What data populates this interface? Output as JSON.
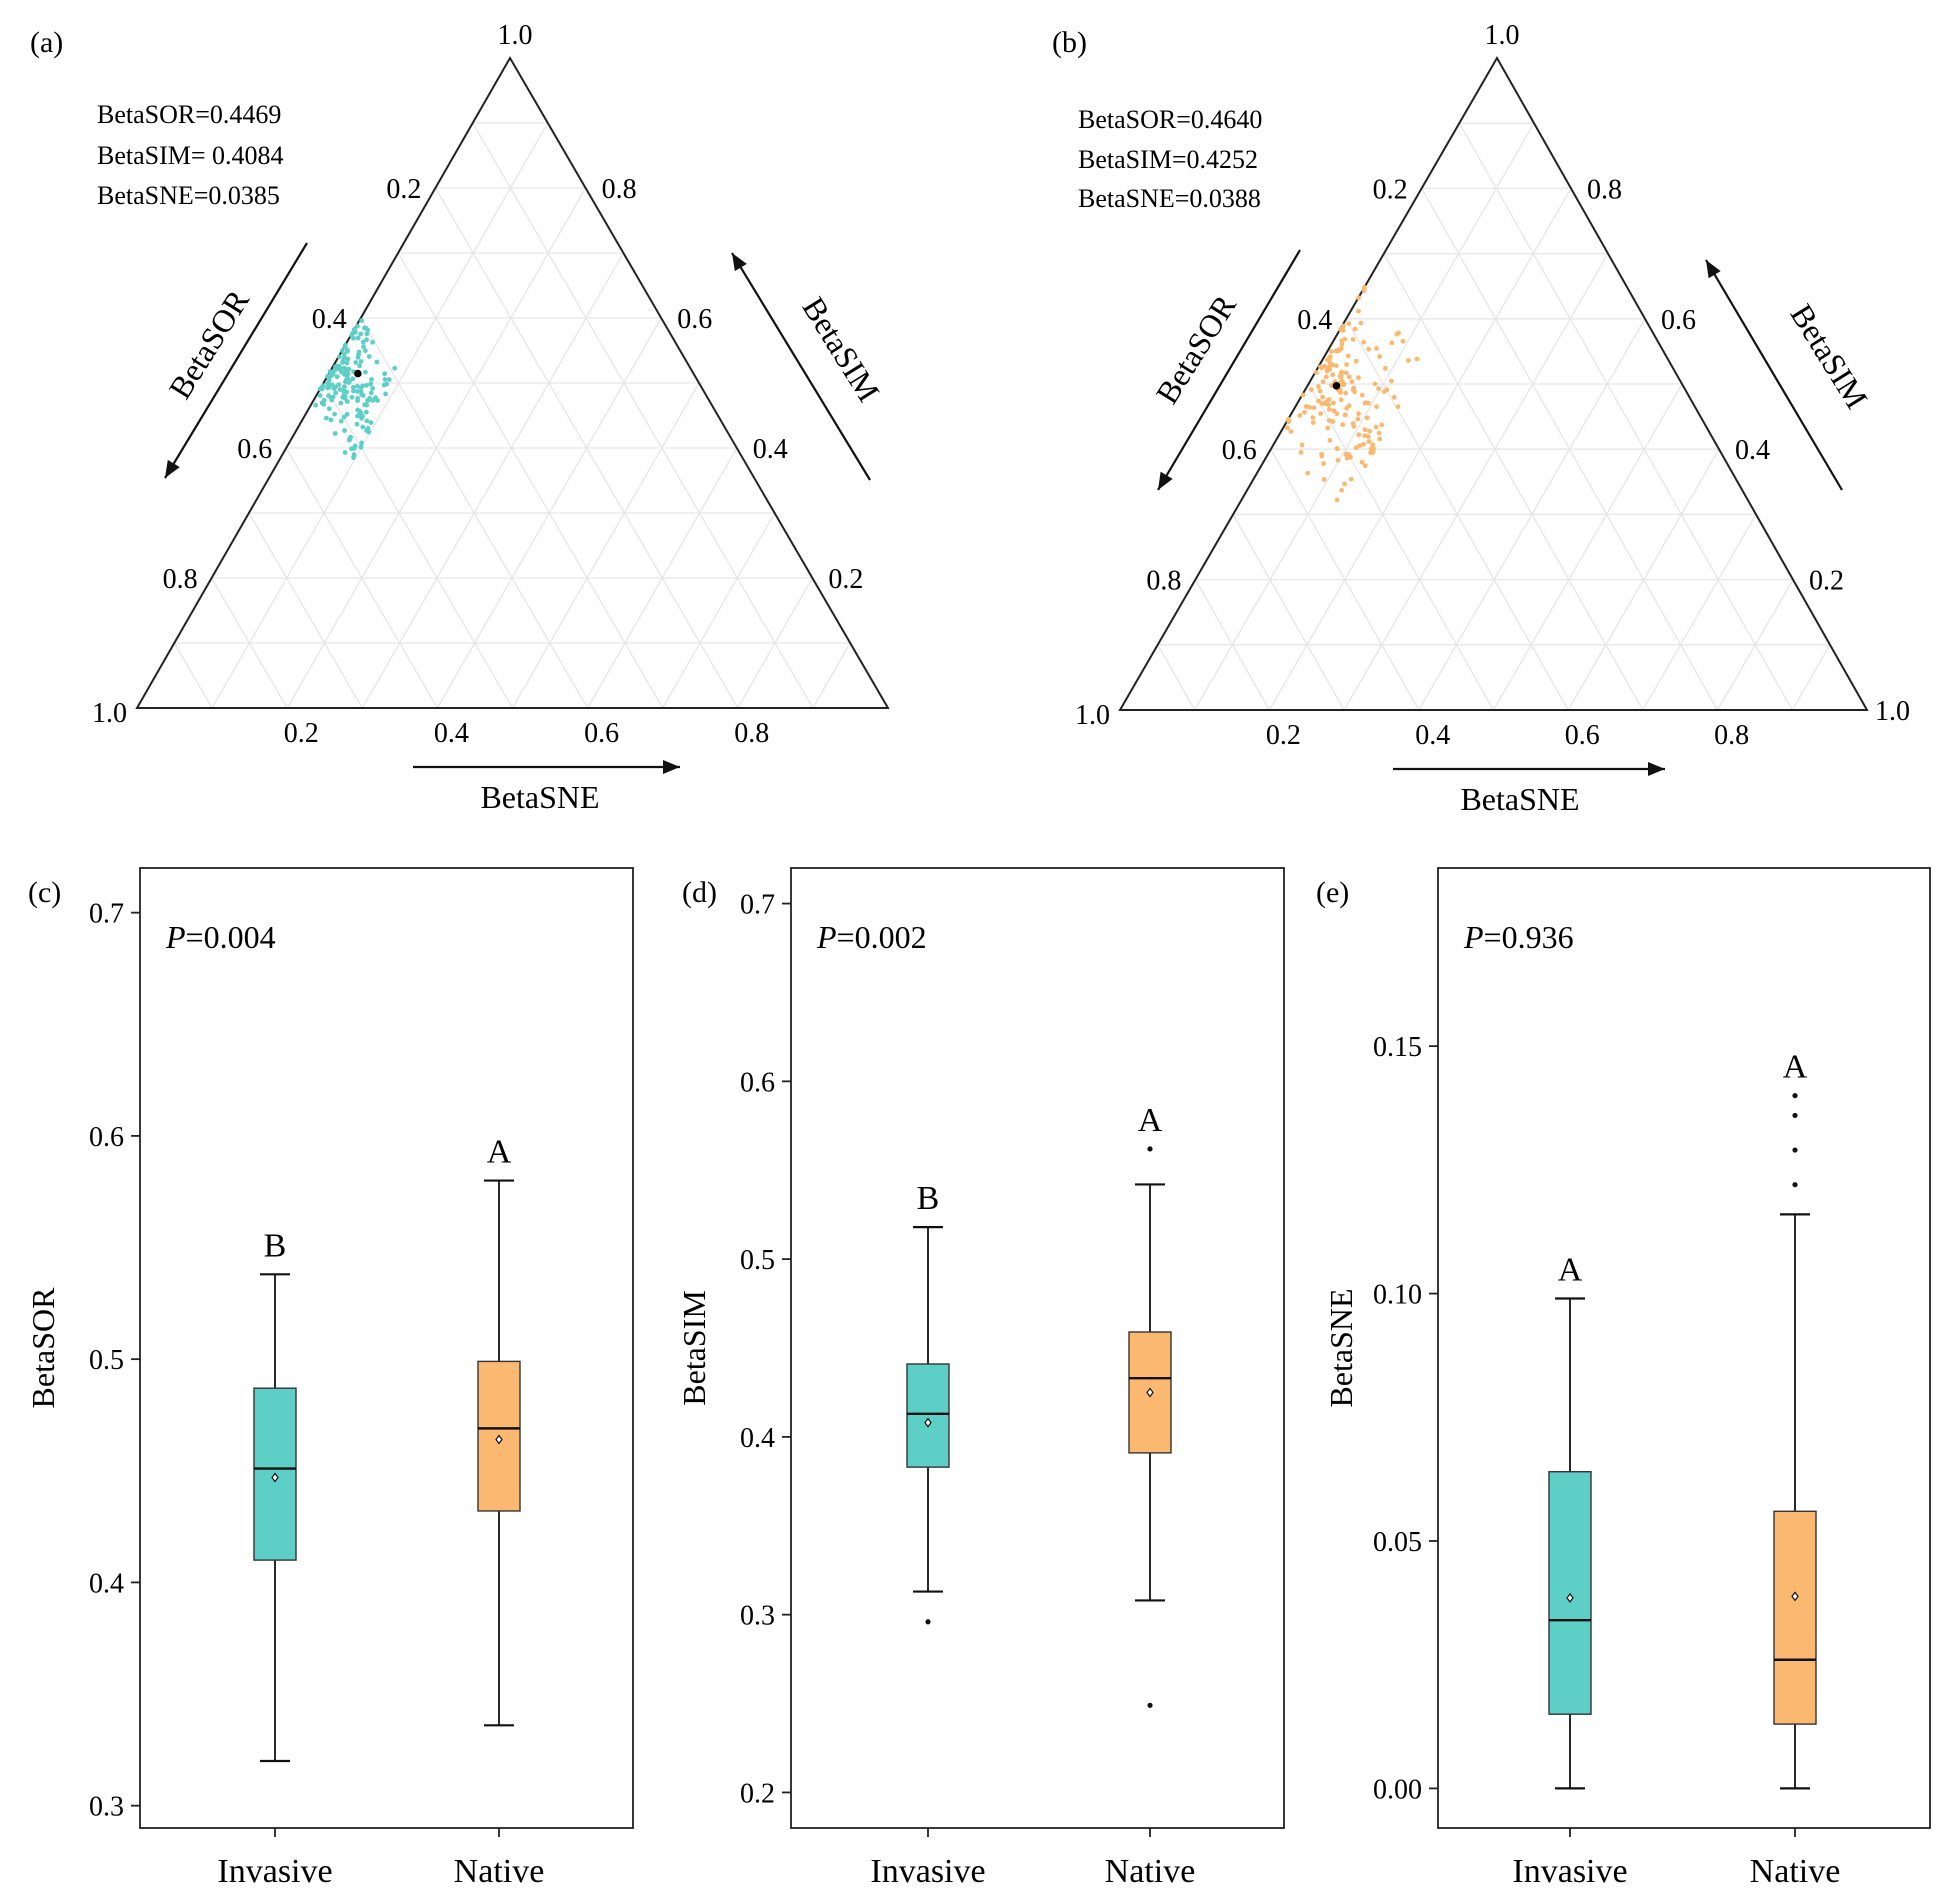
{
  "chart_data": [
    {
      "id": "a",
      "type": "scatter",
      "subtype": "ternary",
      "panel_label": "(a)",
      "axes": [
        "BetaSOR",
        "BetaSIM",
        "BetaSNE"
      ],
      "ticks": [
        "0.2",
        "0.4",
        "0.6",
        "0.8",
        "1.0"
      ],
      "stats": [
        "BetaSOR=0.4469",
        "BetaSIM= 0.4084",
        "BetaSNE=0.0385"
      ],
      "point_color": "#5ecfc6",
      "mean_point": {
        "BetaSOR": 0.4469,
        "BetaSIM": 0.4084,
        "BetaSNE": 0.0385
      },
      "cluster": {
        "sor": [
          0.39,
          0.54
        ],
        "sne": [
          0.0,
          0.1
        ]
      },
      "n_points": 170
    },
    {
      "id": "b",
      "type": "scatter",
      "subtype": "ternary",
      "panel_label": "(b)",
      "axes": [
        "BetaSOR",
        "BetaSIM",
        "BetaSNE"
      ],
      "ticks": [
        "0.2",
        "0.4",
        "0.6",
        "0.8",
        "1.0"
      ],
      "stats": [
        "BetaSOR=0.4640",
        "BetaSIM=0.4252",
        "BetaSNE=0.0388"
      ],
      "point_color": "#fbb870",
      "mean_point": {
        "BetaSOR": 0.464,
        "BetaSIM": 0.4252,
        "BetaSNE": 0.0388
      },
      "cluster": {
        "sor": [
          0.33,
          0.58
        ],
        "sne": [
          0.0,
          0.14
        ]
      },
      "n_points": 170
    },
    {
      "id": "c",
      "type": "box",
      "panel_label": "(c)",
      "ylabel": "BetaSOR",
      "p_prefix": "P",
      "p_value": "=0.004",
      "ylim": [
        0.29,
        0.72
      ],
      "yticks": [
        "0.3",
        "0.4",
        "0.5",
        "0.6",
        "0.7"
      ],
      "groups": [
        {
          "name": "Invasive",
          "letter": "B",
          "color": "#5ecfc6",
          "whisker_low": 0.32,
          "q1": 0.41,
          "median": 0.451,
          "q3": 0.487,
          "whisker_high": 0.538,
          "mean": 0.447,
          "outliers": []
        },
        {
          "name": "Native",
          "letter": "A",
          "color": "#fbb870",
          "whisker_low": 0.336,
          "q1": 0.432,
          "median": 0.469,
          "q3": 0.499,
          "whisker_high": 0.58,
          "mean": 0.464,
          "outliers": []
        }
      ]
    },
    {
      "id": "d",
      "type": "box",
      "panel_label": "(d)",
      "ylabel": "BetaSIM",
      "p_prefix": "P",
      "p_value": "=0.002",
      "ylim": [
        0.18,
        0.72
      ],
      "yticks": [
        "0.2",
        "0.3",
        "0.4",
        "0.5",
        "0.6",
        "0.7"
      ],
      "groups": [
        {
          "name": "Invasive",
          "letter": "B",
          "color": "#5ecfc6",
          "whisker_low": 0.313,
          "q1": 0.383,
          "median": 0.413,
          "q3": 0.441,
          "whisker_high": 0.518,
          "mean": 0.408,
          "outliers": [
            0.296
          ]
        },
        {
          "name": "Native",
          "letter": "A",
          "color": "#fbb870",
          "whisker_low": 0.308,
          "q1": 0.391,
          "median": 0.433,
          "q3": 0.459,
          "whisker_high": 0.542,
          "mean": 0.425,
          "outliers": [
            0.249,
            0.562
          ]
        }
      ]
    },
    {
      "id": "e",
      "type": "box",
      "panel_label": "(e)",
      "ylabel": "BetaSNE",
      "p_prefix": "P",
      "p_value": "=0.936",
      "ylim": [
        -0.008,
        0.186
      ],
      "yticks": [
        "0.00",
        "0.05",
        "0.10",
        "0.15"
      ],
      "groups": [
        {
          "name": "Invasive",
          "letter": "A",
          "color": "#5ecfc6",
          "whisker_low": 0.0,
          "q1": 0.015,
          "median": 0.034,
          "q3": 0.064,
          "whisker_high": 0.099,
          "mean": 0.0385,
          "outliers": []
        },
        {
          "name": "Native",
          "letter": "A",
          "color": "#fbb870",
          "whisker_low": 0.0,
          "q1": 0.013,
          "median": 0.026,
          "q3": 0.056,
          "whisker_high": 0.116,
          "mean": 0.0388,
          "outliers": [
            0.122,
            0.129,
            0.136,
            0.14
          ]
        }
      ]
    }
  ]
}
